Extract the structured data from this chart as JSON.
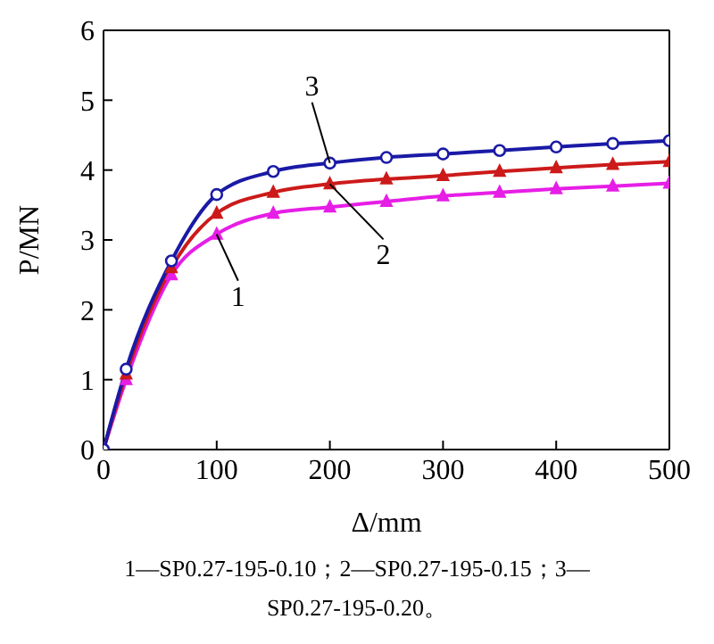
{
  "chart_data": {
    "type": "line",
    "xlabel": "Δ/mm",
    "ylabel": "P/MN",
    "x": [
      0,
      20,
      60,
      100,
      150,
      200,
      250,
      300,
      350,
      400,
      450,
      500
    ],
    "series": [
      {
        "name": "1",
        "color": "#e61ee6",
        "marker": "triangle",
        "values": [
          0,
          1.0,
          2.5,
          3.08,
          3.38,
          3.47,
          3.55,
          3.63,
          3.68,
          3.73,
          3.77,
          3.81
        ]
      },
      {
        "name": "2",
        "color": "#cc1a1a",
        "marker": "triangle",
        "values": [
          0,
          1.08,
          2.6,
          3.38,
          3.68,
          3.8,
          3.87,
          3.92,
          3.98,
          4.03,
          4.08,
          4.12
        ]
      },
      {
        "name": "3",
        "color": "#1a1aa6",
        "marker": "circle",
        "values": [
          0,
          1.15,
          2.7,
          3.65,
          3.98,
          4.1,
          4.18,
          4.23,
          4.28,
          4.33,
          4.38,
          4.42
        ]
      }
    ],
    "xlim": [
      0,
      500
    ],
    "xticks": [
      0,
      100,
      200,
      300,
      400,
      500
    ],
    "ylim": [
      0,
      6
    ],
    "yticks": [
      0,
      1,
      2,
      3,
      4,
      5,
      6
    ],
    "grid": false,
    "legend": false,
    "line_style": "solid",
    "annotations": [
      "1—SP0.27-195-0.10；2—SP0.27-195-0.15；3—SP0.27-195-0.20。"
    ]
  }
}
